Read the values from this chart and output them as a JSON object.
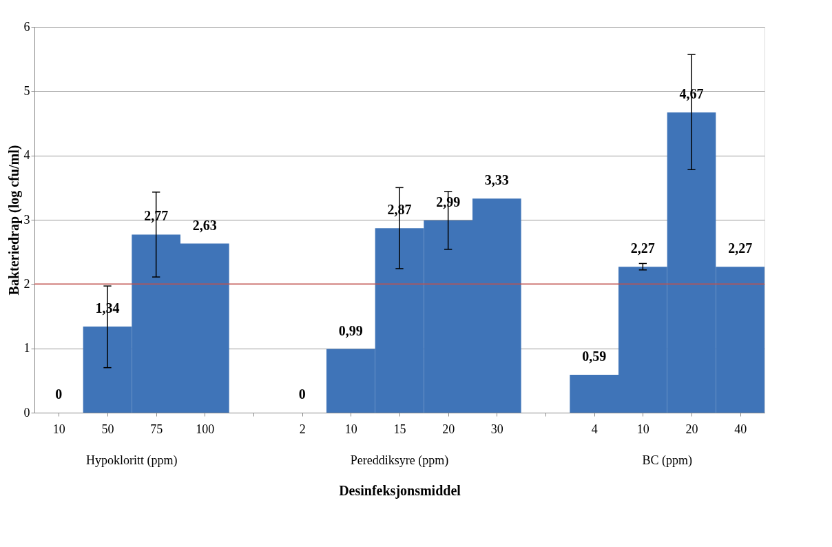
{
  "chart_data": {
    "type": "bar",
    "categories": [
      "10",
      "50",
      "75",
      "100",
      null,
      "2",
      "10",
      "15",
      "20",
      "30",
      null,
      "4",
      "10",
      "20",
      "40"
    ],
    "values": [
      0,
      1.34,
      2.77,
      2.63,
      null,
      0,
      0.99,
      2.87,
      2.99,
      3.33,
      null,
      0.59,
      2.27,
      4.67,
      2.27
    ],
    "value_labels": [
      "0",
      "1,34",
      "2,77",
      "2,63",
      null,
      "0",
      "0,99",
      "2,87",
      "2,99",
      "3,33",
      null,
      "0,59",
      "2,27",
      "4,67",
      "2,27"
    ],
    "errors": [
      null,
      [
        0.7,
        1.97
      ],
      [
        2.11,
        3.43
      ],
      null,
      null,
      null,
      null,
      [
        2.24,
        3.5
      ],
      [
        2.54,
        3.44
      ],
      null,
      null,
      null,
      [
        2.22,
        2.32
      ],
      [
        3.78,
        5.57
      ],
      null
    ],
    "color": "#3f74b8",
    "xlabel": "Desinfeksjonsmiddel",
    "ylabel": "Bakteriedrap (log cfu/ml)",
    "ylim": [
      0,
      6
    ],
    "yticks": [
      0,
      1,
      2,
      3,
      4,
      5,
      6
    ],
    "grid": "y",
    "ref_lines": [
      {
        "axis": "y",
        "value": 2,
        "label": null,
        "color": "#c0504d"
      }
    ],
    "annotations": [
      "Hypokloritt (ppm)",
      "Pereddiksyre (ppm)",
      "BC (ppm)"
    ]
  }
}
